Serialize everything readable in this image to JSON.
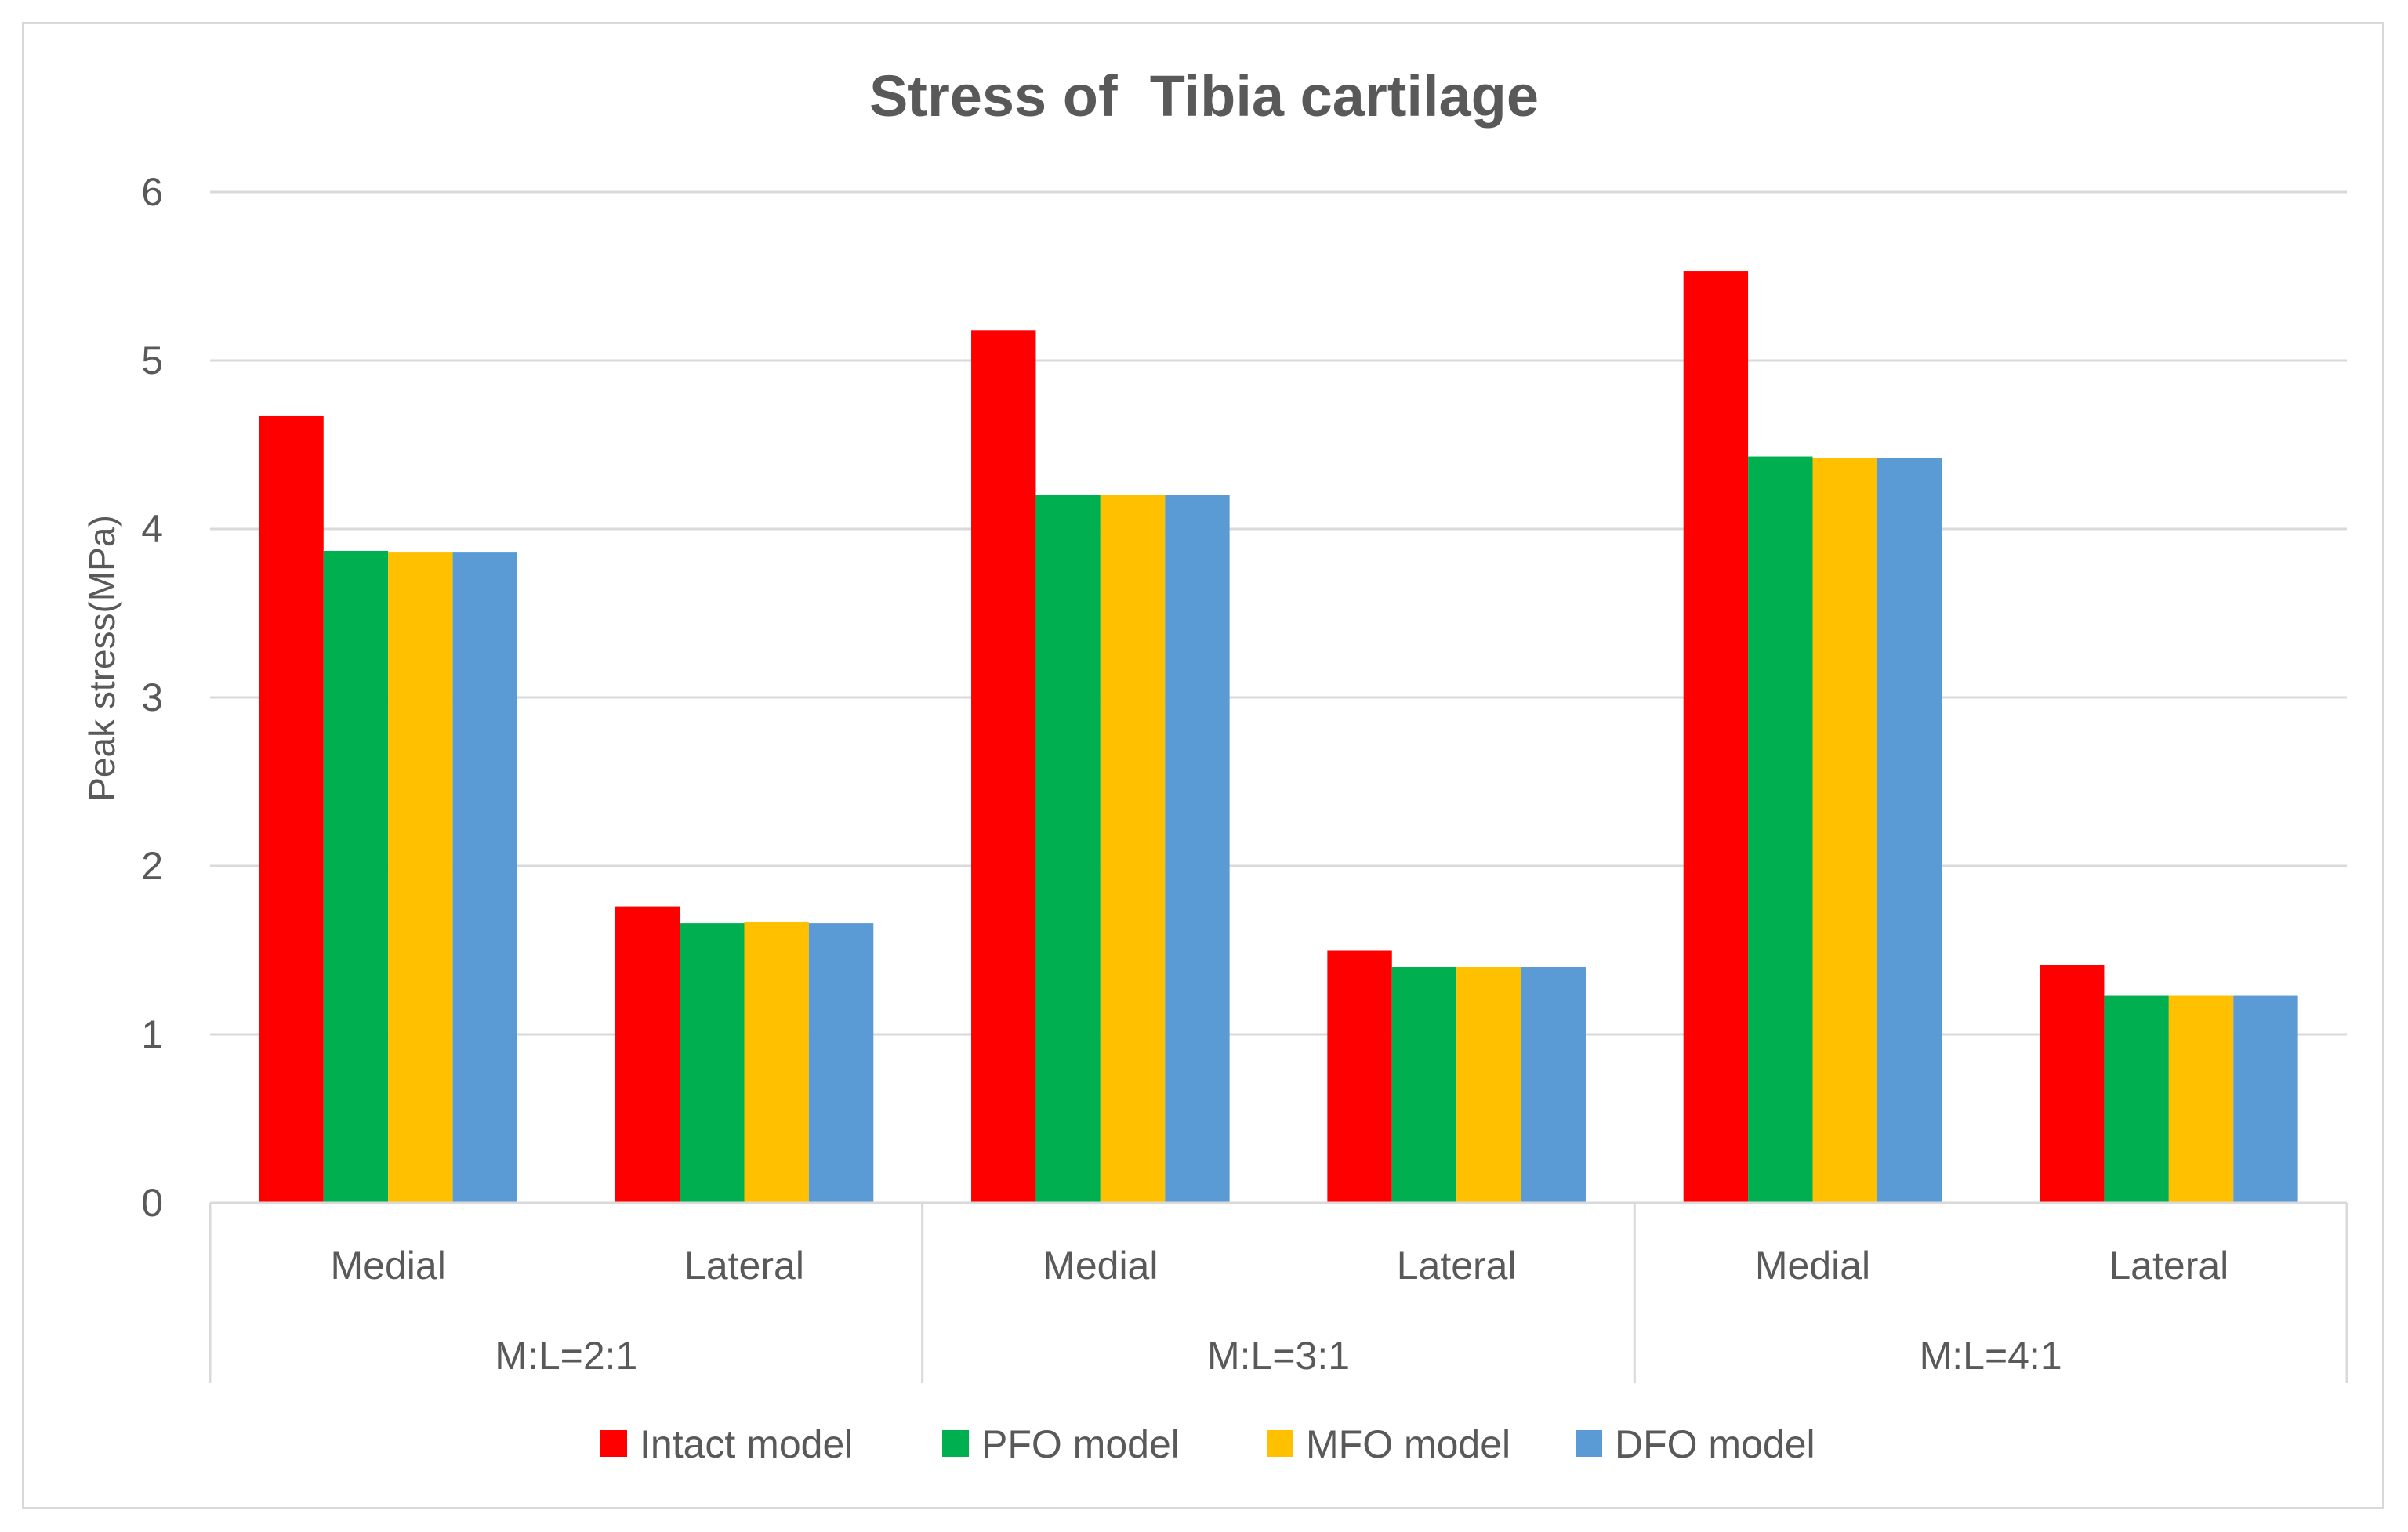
{
  "chart_data": {
    "type": "bar",
    "title": "Stress of  Tibia cartilage",
    "xlabel": "",
    "ylabel": "Peak stress(MPa)",
    "ylim": [
      0,
      6
    ],
    "yticks": [
      "0",
      "1",
      "2",
      "3",
      "4",
      "5",
      "6"
    ],
    "grid": true,
    "legend_position": "bottom",
    "groups": [
      {
        "label": "M:L=2:1",
        "categories": [
          "Medial",
          "Lateral"
        ]
      },
      {
        "label": "M:L=3:1",
        "categories": [
          "Medial",
          "Lateral"
        ]
      },
      {
        "label": "M:L=4:1",
        "categories": [
          "Medial",
          "Lateral"
        ]
      }
    ],
    "series": [
      {
        "name": "Intact model",
        "color": "#ff0000",
        "values": [
          4.67,
          1.76,
          5.18,
          1.5,
          5.53,
          1.41
        ]
      },
      {
        "name": "PFO model",
        "color": "#00b050",
        "values": [
          3.87,
          1.66,
          4.2,
          1.4,
          4.43,
          1.23
        ]
      },
      {
        "name": "MFO model",
        "color": "#ffc000",
        "values": [
          3.86,
          1.67,
          4.2,
          1.4,
          4.42,
          1.23
        ]
      },
      {
        "name": "DFO model",
        "color": "#5b9bd5",
        "values": [
          3.86,
          1.66,
          4.2,
          1.4,
          4.42,
          1.23
        ]
      }
    ]
  }
}
